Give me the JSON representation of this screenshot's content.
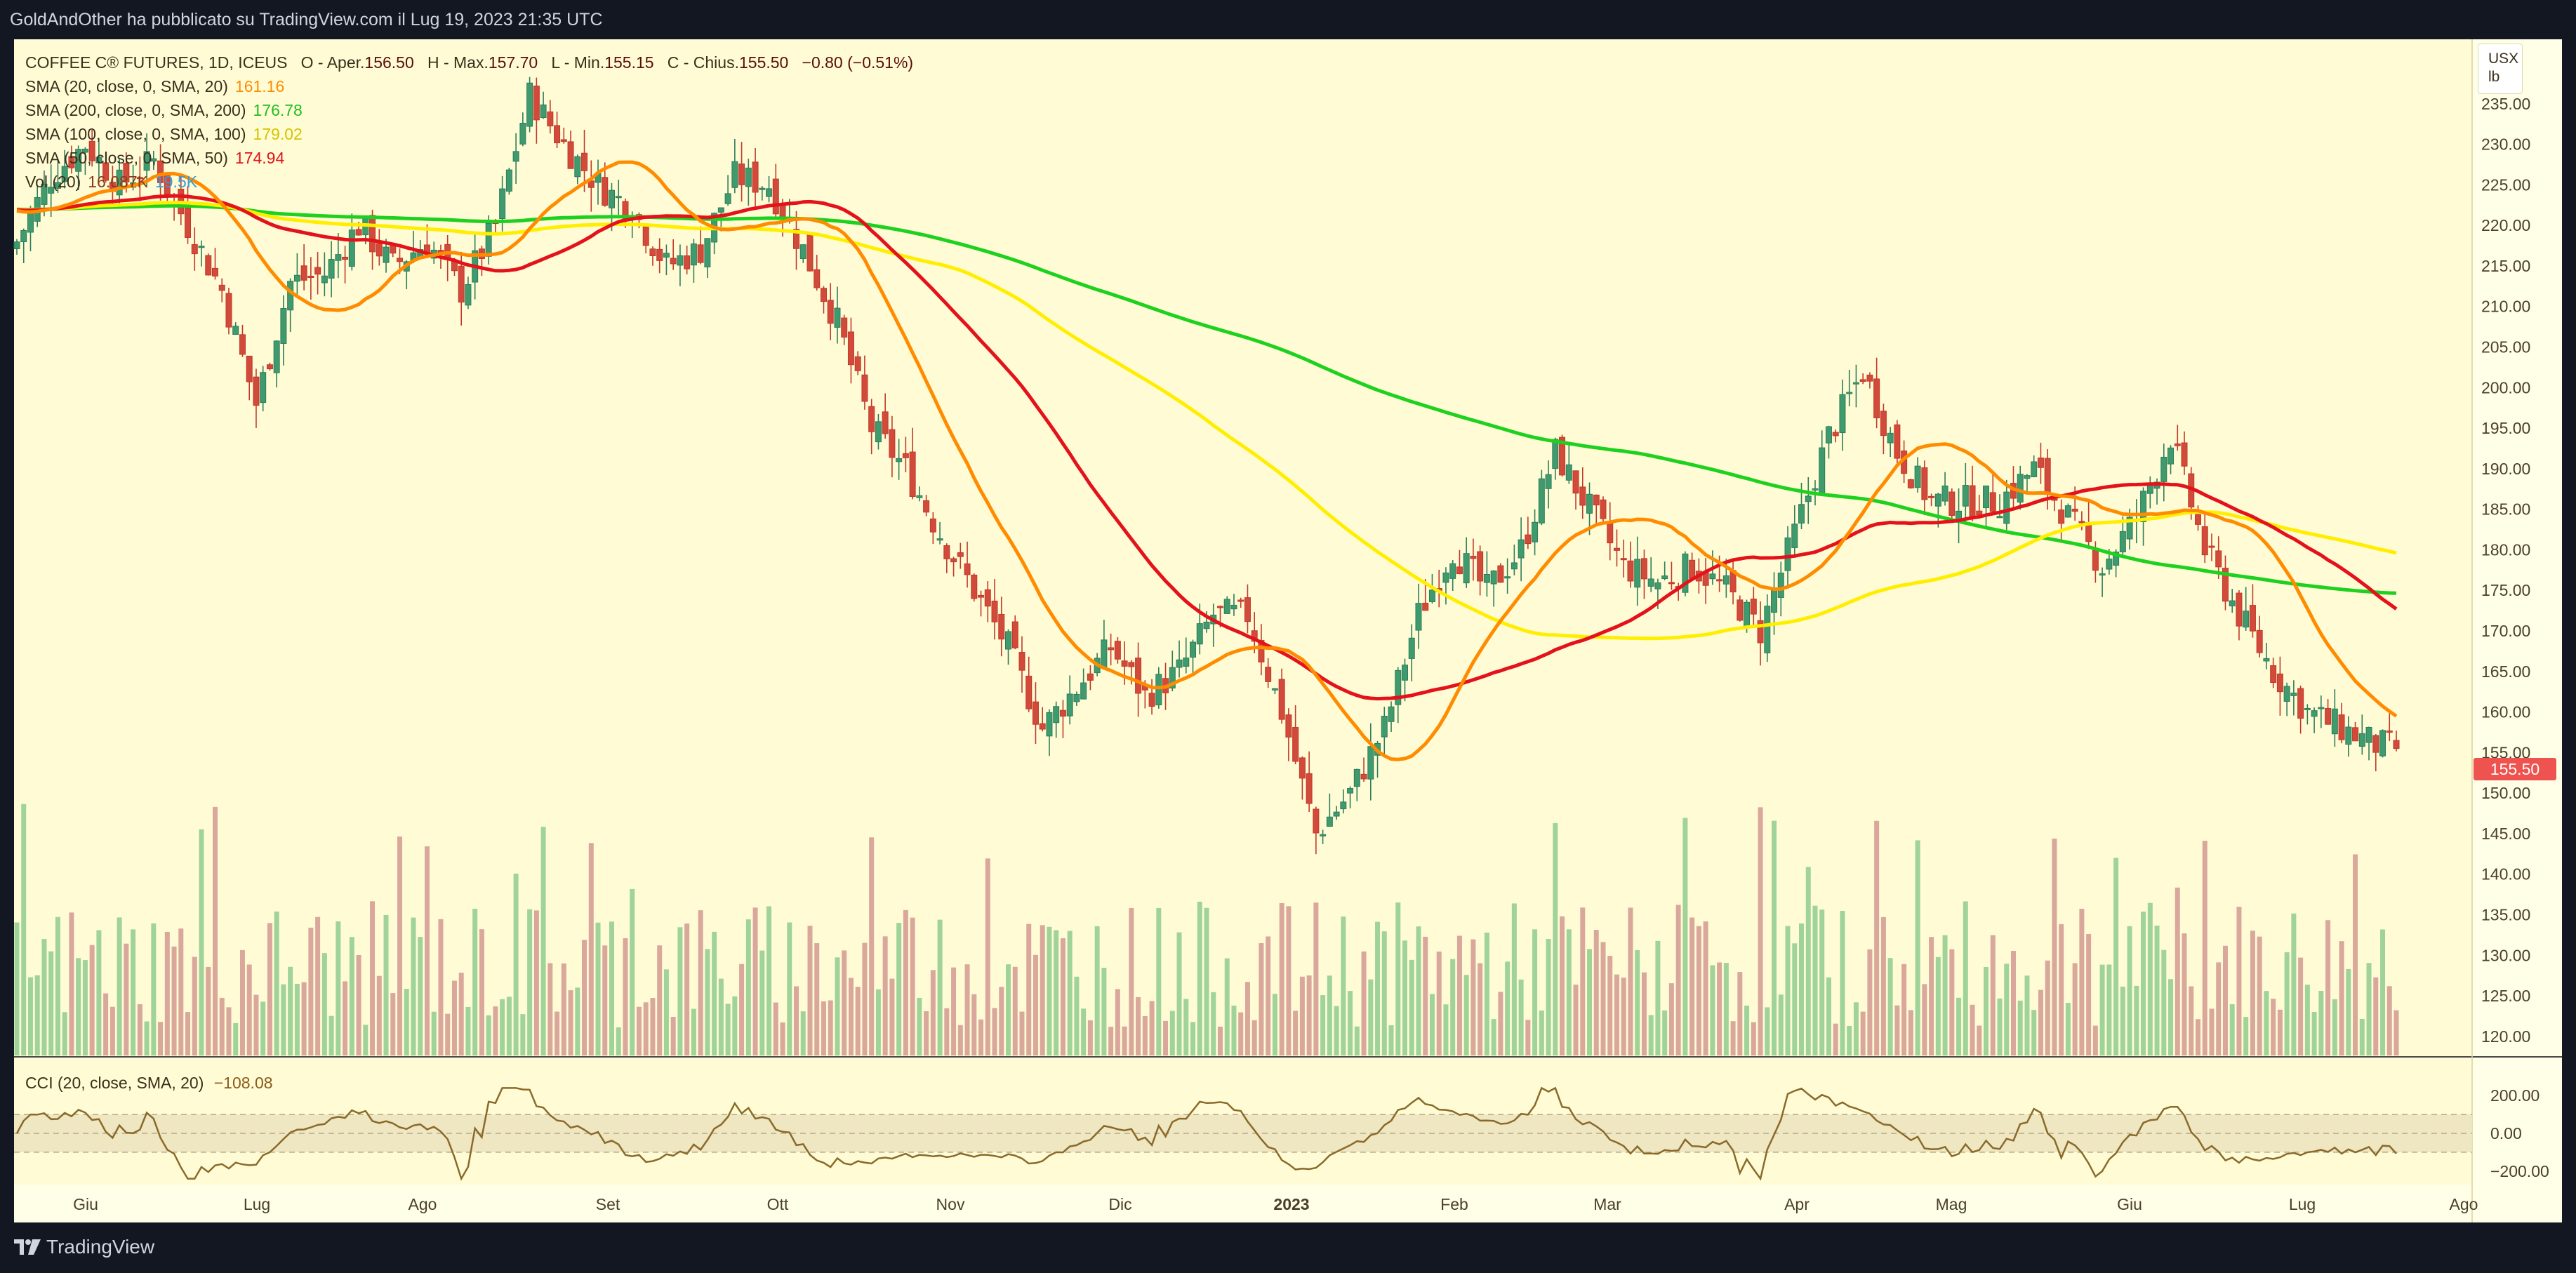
{
  "header": {
    "publisher_line": "GoldAndOther ha pubblicato su TradingView.com il Lug 19, 2023 21:35 UTC"
  },
  "footer": {
    "brand": "TradingView"
  },
  "legend": {
    "symbol_line": {
      "symbol": "COFFEE C® FUTURES, 1D, ICEUS",
      "o_label": "O - Aper.",
      "o_value": "156.50",
      "h_label": "H - Max.",
      "h_value": "157.70",
      "l_label": "L - Min.",
      "l_value": "155.15",
      "c_label": "C - Chius.",
      "c_value": "155.50",
      "change": "−0.80 (−0.51%)"
    },
    "sma20": {
      "label": "SMA (20, close, 0, SMA, 20)",
      "value": "161.16",
      "color": "#ff8c00"
    },
    "sma200": {
      "label": "SMA (200, close, 0, SMA, 200)",
      "value": "176.78",
      "color": "#1fd11f"
    },
    "sma100": {
      "label": "SMA (100, close, 0, SMA, 100)",
      "value": "179.02",
      "color": "#ffee00"
    },
    "sma50": {
      "label": "SMA (50, close, 0, SMA, 50)",
      "value": "174.94",
      "color": "#e3121b"
    },
    "vol": {
      "label": "Vol (20)",
      "value": "16.087K",
      "value2": "19.5K"
    },
    "cci": {
      "label": "CCI (20, close, SMA, 20)",
      "value": "−108.08"
    }
  },
  "unit": {
    "line1": "USX",
    "line2": "lb"
  },
  "last_price_label": "155.50",
  "chart_data": {
    "type": "candlestick",
    "symbol": "COFFEE C® FUTURES",
    "interval": "1D",
    "exchange": "ICEUS",
    "ohlc_last": {
      "open": 156.5,
      "high": 157.7,
      "low": 155.15,
      "close": 155.5,
      "change": -0.8,
      "change_pct": -0.51
    },
    "price_axis": {
      "ticks": [
        120,
        125,
        130,
        135,
        140,
        145,
        150,
        155,
        160,
        165,
        170,
        175,
        180,
        185,
        190,
        195,
        200,
        205,
        210,
        215,
        220,
        225,
        230,
        235
      ],
      "ylim": [
        118,
        240
      ]
    },
    "cci_axis": {
      "ticks": [
        "200.00",
        "0.00",
        "−200.00"
      ],
      "band": [
        -100,
        100
      ]
    },
    "x_axis_labels": [
      "Giu",
      "Lug",
      "Ago",
      "Set",
      "Ott",
      "Nov",
      "Dic",
      "2023",
      "Feb",
      "Mar",
      "Apr",
      "Mag",
      "Giu",
      "Lug",
      "Ago"
    ],
    "closes_approx": [
      {
        "t": 0,
        "c": 218
      },
      {
        "t": 5,
        "c": 226
      },
      {
        "t": 10,
        "c": 230
      },
      {
        "t": 15,
        "c": 225
      },
      {
        "t": 20,
        "c": 228
      },
      {
        "t": 25,
        "c": 220
      },
      {
        "t": 30,
        "c": 212
      },
      {
        "t": 35,
        "c": 198
      },
      {
        "t": 40,
        "c": 213
      },
      {
        "t": 45,
        "c": 214
      },
      {
        "t": 50,
        "c": 220
      },
      {
        "t": 55,
        "c": 215
      },
      {
        "t": 60,
        "c": 218
      },
      {
        "t": 65,
        "c": 212
      },
      {
        "t": 70,
        "c": 220
      },
      {
        "t": 75,
        "c": 236
      },
      {
        "t": 80,
        "c": 230
      },
      {
        "t": 85,
        "c": 225
      },
      {
        "t": 90,
        "c": 222
      },
      {
        "t": 95,
        "c": 215
      },
      {
        "t": 100,
        "c": 217
      },
      {
        "t": 105,
        "c": 226
      },
      {
        "t": 110,
        "c": 225
      },
      {
        "t": 115,
        "c": 217
      },
      {
        "t": 120,
        "c": 208
      },
      {
        "t": 125,
        "c": 195
      },
      {
        "t": 130,
        "c": 190
      },
      {
        "t": 135,
        "c": 182
      },
      {
        "t": 140,
        "c": 175
      },
      {
        "t": 145,
        "c": 168
      },
      {
        "t": 150,
        "c": 158
      },
      {
        "t": 155,
        "c": 163
      },
      {
        "t": 160,
        "c": 168
      },
      {
        "t": 165,
        "c": 162
      },
      {
        "t": 170,
        "c": 165
      },
      {
        "t": 175,
        "c": 172
      },
      {
        "t": 180,
        "c": 172
      },
      {
        "t": 185,
        "c": 160
      },
      {
        "t": 190,
        "c": 145
      },
      {
        "t": 195,
        "c": 150
      },
      {
        "t": 200,
        "c": 158
      },
      {
        "t": 205,
        "c": 172
      },
      {
        "t": 210,
        "c": 180
      },
      {
        "t": 215,
        "c": 175
      },
      {
        "t": 220,
        "c": 180
      },
      {
        "t": 225,
        "c": 192
      },
      {
        "t": 230,
        "c": 185
      },
      {
        "t": 235,
        "c": 178
      },
      {
        "t": 240,
        "c": 176
      },
      {
        "t": 245,
        "c": 178
      },
      {
        "t": 250,
        "c": 175
      },
      {
        "t": 255,
        "c": 170
      },
      {
        "t": 260,
        "c": 182
      },
      {
        "t": 265,
        "c": 194
      },
      {
        "t": 270,
        "c": 202
      },
      {
        "t": 275,
        "c": 192
      },
      {
        "t": 280,
        "c": 186
      },
      {
        "t": 285,
        "c": 186
      },
      {
        "t": 290,
        "c": 186
      },
      {
        "t": 295,
        "c": 190
      },
      {
        "t": 300,
        "c": 184
      },
      {
        "t": 305,
        "c": 178
      },
      {
        "t": 310,
        "c": 184
      },
      {
        "t": 315,
        "c": 194
      },
      {
        "t": 320,
        "c": 180
      },
      {
        "t": 325,
        "c": 172
      },
      {
        "t": 330,
        "c": 165
      },
      {
        "t": 335,
        "c": 160
      },
      {
        "t": 340,
        "c": 158
      },
      {
        "t": 345,
        "c": 156
      },
      {
        "t": 348,
        "c": 155.5
      }
    ],
    "sma_series": [
      {
        "name": "SMA (20)",
        "color": "#ff8c00",
        "last": 161.16
      },
      {
        "name": "SMA (50)",
        "color": "#e3121b",
        "last": 174.94
      },
      {
        "name": "SMA (100)",
        "color": "#ffee00",
        "last": 179.02
      },
      {
        "name": "SMA (200)",
        "color": "#1fd11f",
        "last": 176.78
      }
    ]
  }
}
